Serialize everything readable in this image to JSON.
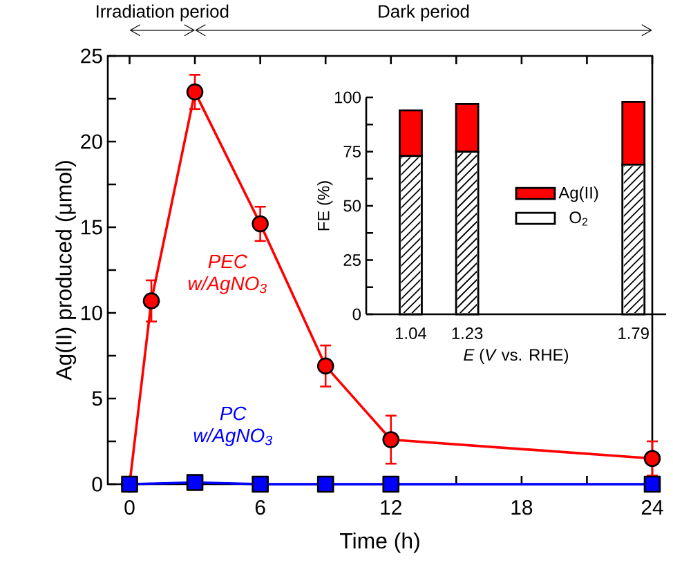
{
  "chart_data": [
    {
      "type": "line",
      "xlabel": "Time (h)",
      "ylabel": "Ag(II) produced (μmol)",
      "xlim": [
        -1,
        24
      ],
      "ylim": [
        0,
        25
      ],
      "xticks": [
        0,
        {
          "value": 3,
          "label": null
        },
        6,
        {
          "value": 9,
          "label": null
        },
        12,
        {
          "value": 15,
          "label": null
        },
        18,
        {
          "value": 21,
          "label": null
        },
        24
      ],
      "yticks": [
        0,
        {
          "value": 2.5,
          "label": null
        },
        5,
        {
          "value": 7.5,
          "label": null
        },
        10,
        {
          "value": 12.5,
          "label": null
        },
        15,
        {
          "value": 17.5,
          "label": null
        },
        20,
        {
          "value": 22.5,
          "label": null
        },
        25
      ],
      "series": [
        {
          "name": "PEC w/AgNO$_{3}$",
          "color": "#ff0000",
          "marker": "circle",
          "x": [
            0,
            1,
            3,
            6,
            9,
            12,
            24
          ],
          "values": [
            0,
            10.7,
            22.9,
            15.2,
            6.9,
            2.6,
            1.5
          ],
          "errors": [
            null,
            1.2,
            1.0,
            1.0,
            1.2,
            1.4,
            1.0
          ]
        },
        {
          "name": "PC w/AgNO$_{3}$",
          "color": "#0000ff",
          "marker": "square",
          "x": [
            0,
            3,
            6,
            9,
            12,
            24
          ],
          "values": [
            0,
            0.1,
            0,
            0,
            0,
            0
          ]
        }
      ],
      "annotations": [
        "Irradiation period",
        "Dark period"
      ]
    },
    {
      "type": "bar",
      "stacked": true,
      "xlabel": "*E* (*V* vs. RHE)",
      "ylabel": "FE (%)",
      "x": [
        1.04,
        1.23,
        1.79
      ],
      "xlim": [
        0.89,
        1.9
      ],
      "xticks": [
        1.04,
        1.23,
        1.79
      ],
      "ylim": [
        0,
        100
      ],
      "yticks": [
        0,
        {
          "value": 12.5,
          "label": null
        },
        25,
        {
          "value": 37.5,
          "label": null
        },
        50,
        {
          "value": 62.5,
          "label": null
        },
        75,
        {
          "value": 87.5,
          "label": null
        },
        100
      ],
      "legend": "right",
      "series": [
        {
          "name": "O$_{2}$",
          "color": "#ffffff",
          "values": [
            73,
            75,
            69
          ]
        },
        {
          "name": "Ag(II)",
          "color": "#ff0000",
          "values": [
            21,
            22,
            29
          ]
        }
      ]
    }
  ]
}
